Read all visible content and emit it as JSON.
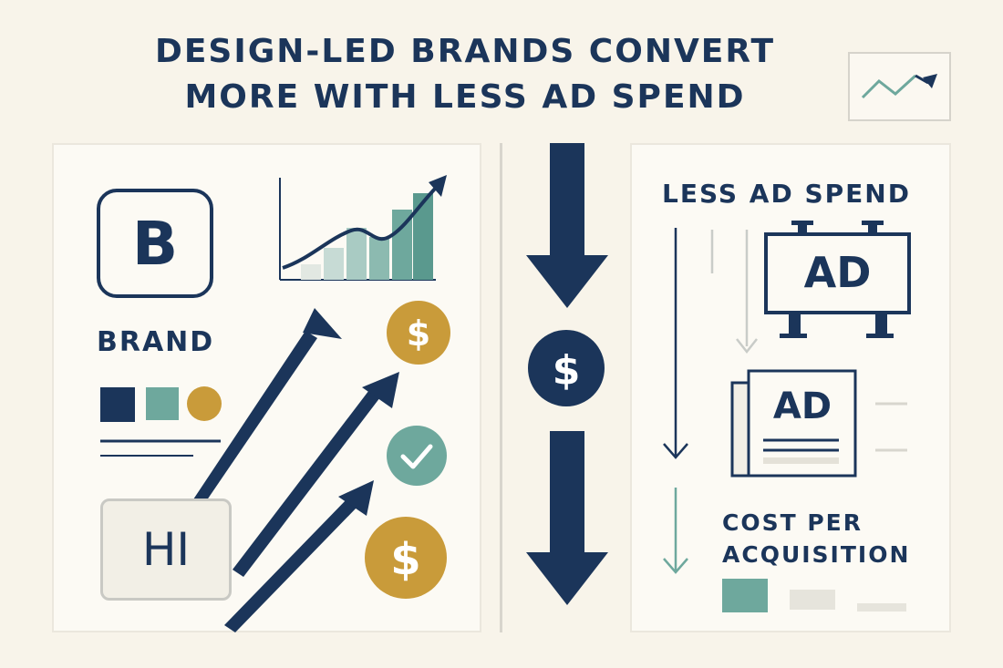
{
  "title": {
    "line1": "DESIGN-LED BRANDS CONVERT",
    "line2": "MORE WITH LESS AD SPEND"
  },
  "left_panel": {
    "brand_letter": "B",
    "brand_label": "BRAND",
    "greeting": "HI",
    "swatches": [
      "#1b355a",
      "#6ea89d",
      "#c99b3a"
    ]
  },
  "center": {
    "coin_symbol": "$"
  },
  "right_panel": {
    "heading": "LESS AD SPEND",
    "billboard_text": "AD",
    "newspaper_text": "AD",
    "cpa_line1": "COST PER",
    "cpa_line2": "ACQUISITION"
  },
  "coins": {
    "symbol": "$",
    "check": "✓"
  },
  "colors": {
    "navy": "#1b355a",
    "teal": "#6ea89d",
    "gold": "#c99b3a",
    "background": "#f8f4ea"
  }
}
